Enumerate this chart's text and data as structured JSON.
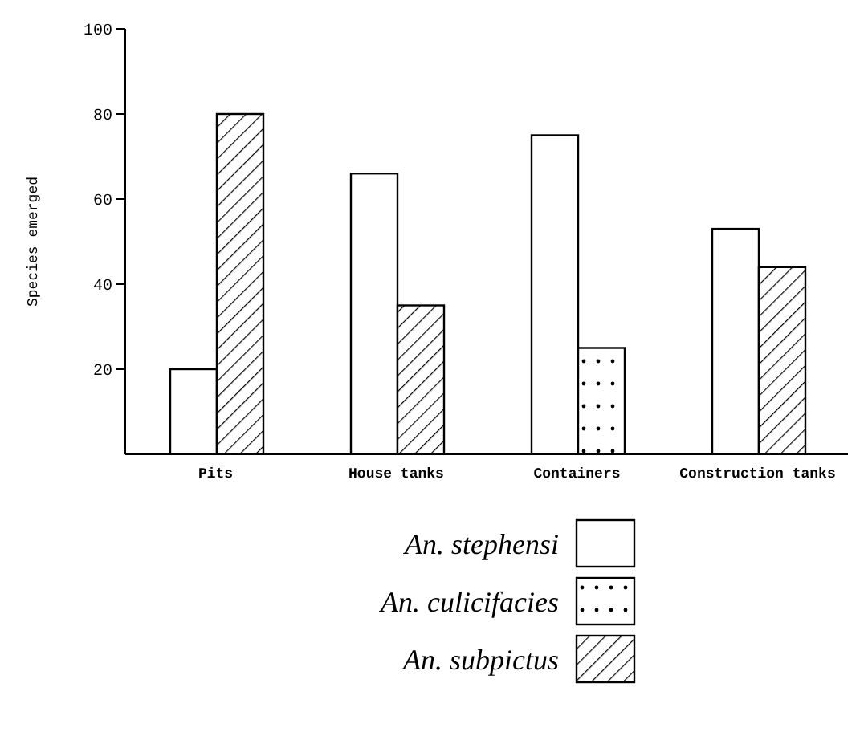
{
  "chart_data": {
    "type": "bar",
    "ylabel": "Species emerged",
    "categories": [
      "Pits",
      "House tanks",
      "Containers",
      "Construction tanks"
    ],
    "series": [
      {
        "name": "An. stephensi",
        "color": "#ffffff",
        "values": [
          20,
          66,
          75,
          53
        ]
      },
      {
        "name": "An. culicifacies",
        "color": "#000000",
        "values": [
          null,
          null,
          25,
          null
        ]
      },
      {
        "name": "An. subpictus",
        "color": "#000000",
        "values": [
          80,
          35,
          null,
          44
        ]
      }
    ],
    "ylim": [
      0,
      100
    ],
    "yticks": [
      20,
      40,
      60,
      80,
      100
    ],
    "grid": false,
    "legend": "bottom"
  }
}
